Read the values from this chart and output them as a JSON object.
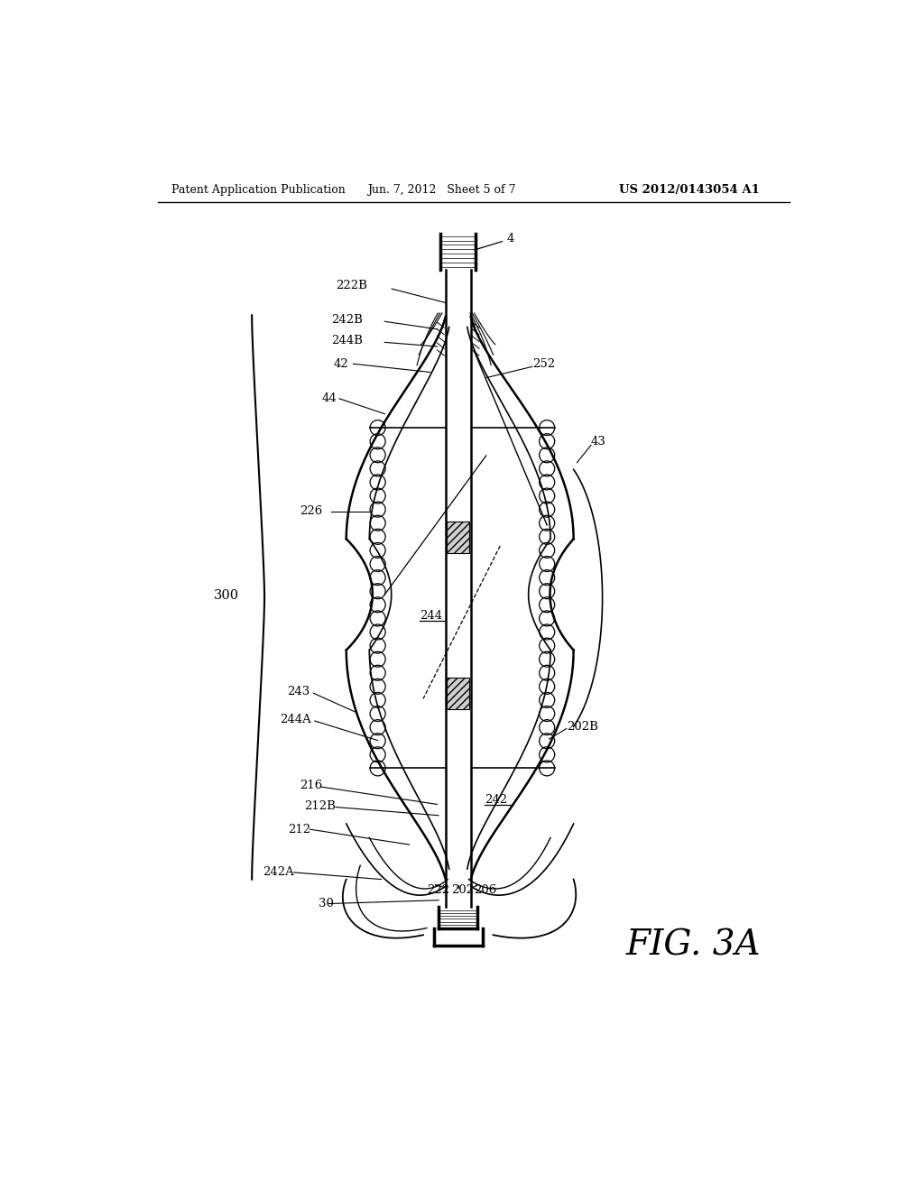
{
  "header_left": "Patent Application Publication",
  "header_center": "Jun. 7, 2012   Sheet 5 of 7",
  "header_right": "US 2012/0143054 A1",
  "fig_label": "FIG. 3A",
  "bg_color": "#ffffff",
  "line_color": "#000000"
}
